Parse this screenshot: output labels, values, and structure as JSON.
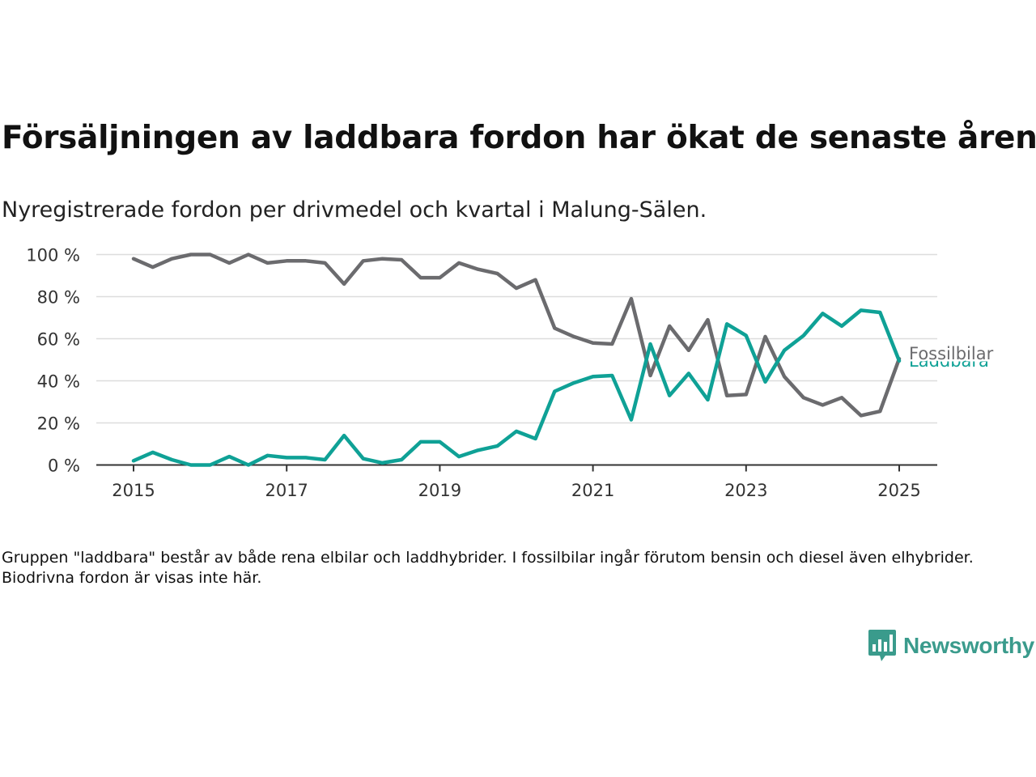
{
  "title": "Försäljningen av laddbara fordon har ökat de senaste åren",
  "subtitle": "Nyregistrerade fordon per drivmedel och kvartal i Malung-Sälen.",
  "note": "Gruppen \"laddbara\" består av både rena elbilar och laddhybrider. I fossilbilar ingår förutom bensin och diesel även elhybrider. Biodrivna fordon är visas inte här.",
  "brand": {
    "name": "Newsworthy",
    "icon": "newsworthy-logo-icon"
  },
  "colors": {
    "fossil": "#6b6b6e",
    "laddbara": "#0fa196",
    "grid": "#dddddd",
    "axis": "#333333",
    "brand": "#3a9b8c"
  },
  "chart_data": {
    "type": "line",
    "title": "Försäljningen av laddbara fordon har ökat de senaste åren",
    "subtitle": "Nyregistrerade fordon per drivmedel och kvartal i Malung-Sälen.",
    "xlabel": "",
    "ylabel": "",
    "x": [
      "2015 Q1",
      "2015 Q2",
      "2015 Q3",
      "2015 Q4",
      "2016 Q1",
      "2016 Q2",
      "2016 Q3",
      "2016 Q4",
      "2017 Q1",
      "2017 Q2",
      "2017 Q3",
      "2017 Q4",
      "2018 Q1",
      "2018 Q2",
      "2018 Q3",
      "2018 Q4",
      "2019 Q1",
      "2019 Q2",
      "2019 Q3",
      "2019 Q4",
      "2020 Q1",
      "2020 Q2",
      "2020 Q3",
      "2020 Q4",
      "2021 Q1",
      "2021 Q2",
      "2021 Q3",
      "2021 Q4",
      "2022 Q1",
      "2022 Q2",
      "2022 Q3",
      "2022 Q4",
      "2023 Q1",
      "2023 Q2",
      "2023 Q3",
      "2023 Q4",
      "2024 Q1",
      "2024 Q2",
      "2024 Q3",
      "2024 Q4",
      "2025 Q1"
    ],
    "xticks": [
      "2015",
      "2017",
      "2019",
      "2021",
      "2023",
      "2025"
    ],
    "yticks": [
      "0 %",
      "20 %",
      "40 %",
      "60 %",
      "80 %",
      "100 %"
    ],
    "ylim": [
      0,
      100
    ],
    "grid": true,
    "series": [
      {
        "name": "Fossilbilar",
        "values": [
          98,
          94,
          98,
          100,
          100,
          96,
          100,
          96,
          97,
          97,
          96,
          86,
          97,
          98,
          97.5,
          89,
          89,
          96,
          93,
          91,
          84,
          88,
          65,
          61,
          58,
          57.5,
          79,
          42.5,
          66,
          54.5,
          69,
          33,
          33.5,
          61,
          42,
          32,
          28.5,
          32,
          23.5,
          25.5,
          50.5
        ]
      },
      {
        "name": "Laddbara",
        "values": [
          2,
          6,
          2.5,
          0,
          0,
          4,
          0,
          4.5,
          3.5,
          3.5,
          2.5,
          14,
          3,
          1,
          2.5,
          11,
          11,
          4,
          7,
          9,
          16,
          12.5,
          35,
          39,
          42,
          42.5,
          21.5,
          57.5,
          33,
          43.5,
          31,
          67,
          61.5,
          39.5,
          54.5,
          61.5,
          72,
          66,
          73.5,
          72.5,
          49.5
        ]
      }
    ],
    "legend": "end-of-line labels on the right"
  }
}
